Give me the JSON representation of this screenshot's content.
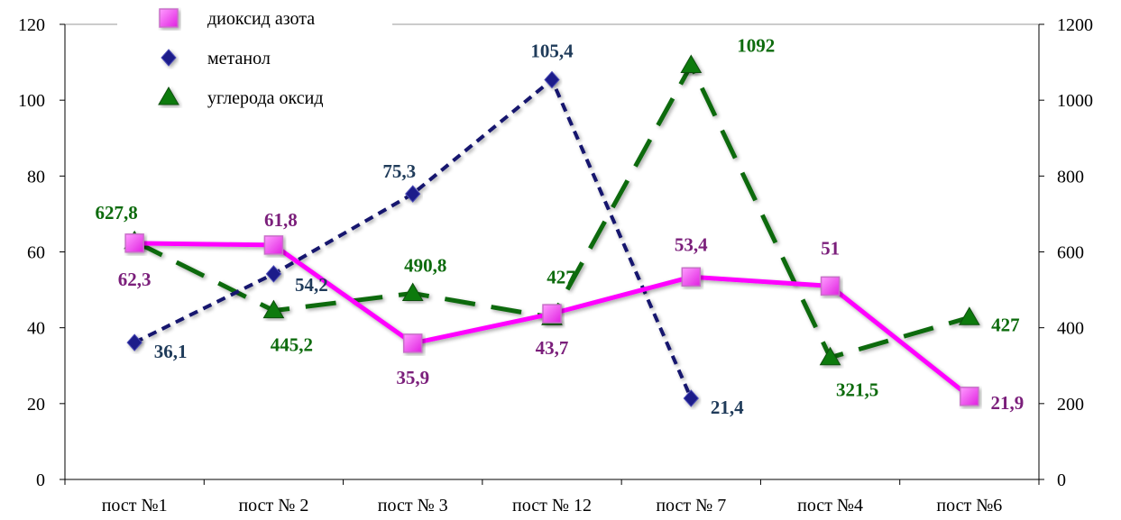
{
  "chart_data": {
    "type": "line",
    "categories": [
      "пост  №1",
      "пост № 2",
      "пост № 3",
      "пост № 12",
      "пост № 7",
      "пост №4",
      "пост №6"
    ],
    "left_axis": {
      "min": 0,
      "max": 120,
      "ticks": [
        "0",
        "20",
        "40",
        "60",
        "80",
        "100",
        "120"
      ]
    },
    "right_axis": {
      "min": 0,
      "max": 1200,
      "ticks": [
        "0",
        "200",
        "400",
        "600",
        "800",
        "1000",
        "1200"
      ]
    },
    "legend_position": "top-left",
    "series": [
      {
        "name": "диоксид азота",
        "axis": "left",
        "color": "#ff00ff",
        "label_color": "#7b1f7b",
        "marker": "square",
        "line_style": "solid",
        "values": [
          62.3,
          61.8,
          35.9,
          43.7,
          53.4,
          51,
          21.9
        ],
        "labels": [
          "62,3",
          "61,8",
          "35,9",
          "43,7",
          "53,4",
          "51",
          "21,9"
        ]
      },
      {
        "name": "метанол",
        "axis": "left",
        "color": "#13136e",
        "label_color": "#1f3b5a",
        "marker": "diamond",
        "line_style": "dashed",
        "values": [
          36.1,
          54.2,
          75.3,
          105.4,
          21.4,
          null,
          null
        ],
        "labels": [
          "36,1",
          "54,2",
          "75,3",
          "105,4",
          "21,4",
          "",
          ""
        ]
      },
      {
        "name": "углерода оксид",
        "axis": "right",
        "color": "#0d6b0d",
        "label_color": "#0d6b0d",
        "marker": "triangle",
        "line_style": "long-dashed",
        "values": [
          627.8,
          445.2,
          490.8,
          427,
          1092,
          321.5,
          427
        ],
        "labels": [
          "627,8",
          "445,2",
          "490,8",
          "427",
          "1092",
          "321,5",
          "427"
        ]
      }
    ]
  }
}
